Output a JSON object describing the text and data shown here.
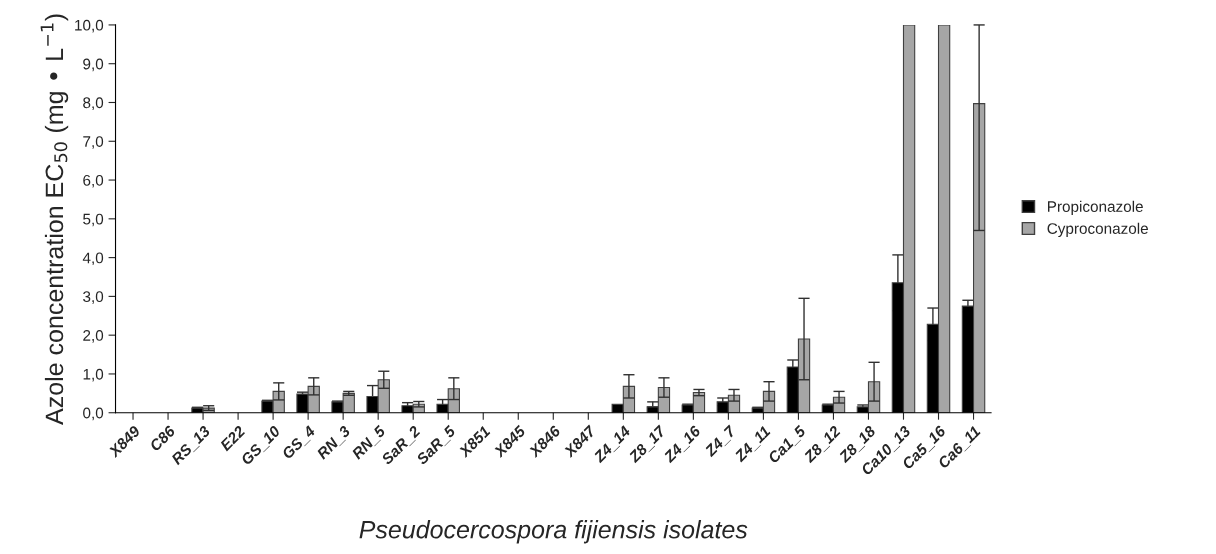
{
  "chart_data": {
    "type": "bar",
    "xlabel": "Pseudocercospora fijiensis isolates",
    "ylabel": "Azole concentration EC$_{50}$ (mg • L$^{−1}$)",
    "categories": [
      "X849",
      "C86",
      "RS_13",
      "E22",
      "GS_10",
      "GS_4",
      "RN_3",
      "RN_5",
      "SaR_2",
      "SaR_5",
      "X851",
      "X845",
      "X846",
      "X847",
      "Z4_14",
      "Z8_17",
      "Z4_16",
      "Z4_7",
      "Z4_11",
      "Ca1_5",
      "Z8_12",
      "Z8_18",
      "Ca10_13",
      "Ca5_16",
      "Ca6_11"
    ],
    "series": [
      {
        "name": "Propiconazole",
        "color": "#000000",
        "values": [
          0,
          0,
          0.12,
          0,
          0.3,
          0.48,
          0.28,
          0.42,
          0.18,
          0.22,
          0,
          0,
          0,
          0,
          0.22,
          0.15,
          0.2,
          0.28,
          0.12,
          1.18,
          0.2,
          0.15,
          3.35,
          2.28,
          2.75
        ],
        "errors": [
          null,
          null,
          0.02,
          null,
          0.02,
          0.05,
          0.02,
          0.28,
          0.08,
          0.12,
          null,
          null,
          null,
          null,
          null,
          [
            0.15,
            0.28
          ],
          0.02,
          0.1,
          0.02,
          0.18,
          0.02,
          0.05,
          0.72,
          0.42,
          0.15
        ]
      },
      {
        "name": "Cyproconazole",
        "color": "#a6a6a6",
        "values": [
          0,
          0,
          0.12,
          0,
          0.55,
          0.68,
          0.5,
          0.85,
          0.22,
          0.62,
          0,
          0,
          0,
          0,
          0.68,
          0.65,
          0.52,
          0.45,
          0.55,
          1.9,
          0.4,
          0.8,
          10.0,
          10.0,
          7.97
        ],
        "errors": [
          null,
          null,
          0.06,
          null,
          0.22,
          0.22,
          0.05,
          0.22,
          0.07,
          0.28,
          null,
          null,
          null,
          null,
          0.3,
          0.25,
          0.08,
          0.15,
          0.25,
          1.05,
          0.15,
          0.5,
          null,
          null,
          [
            4.7,
            10.0
          ]
        ]
      }
    ],
    "ylim": [
      0,
      10
    ],
    "yticks": [
      {
        "value": 0,
        "label": "0,0"
      },
      {
        "value": 1,
        "label": "1,0"
      },
      {
        "value": 2,
        "label": "2,0"
      },
      {
        "value": 3,
        "label": "3,0"
      },
      {
        "value": 4,
        "label": "4,0"
      },
      {
        "value": 5,
        "label": "5,0"
      },
      {
        "value": 6,
        "label": "6,0"
      },
      {
        "value": 7,
        "label": "7,0"
      },
      {
        "value": 8,
        "label": "8,0"
      },
      {
        "value": 9,
        "label": "9,0"
      },
      {
        "value": 10,
        "label": "10,0"
      }
    ],
    "grid": false,
    "legend": "right"
  }
}
